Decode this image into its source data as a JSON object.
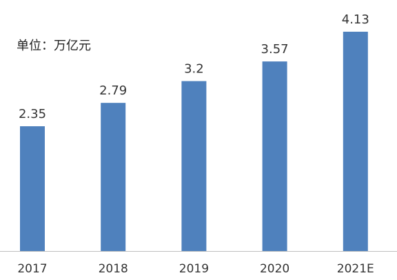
{
  "chart_data": {
    "type": "bar",
    "unit_label": "单位：万亿元",
    "categories": [
      "2017",
      "2018",
      "2019",
      "2020",
      "2021E"
    ],
    "values": [
      2.35,
      2.79,
      3.2,
      3.57,
      4.13
    ],
    "value_labels": [
      "2.35",
      "2.79",
      "3.2",
      "3.57",
      "4.13"
    ],
    "ylim": [
      0,
      4.5
    ],
    "bar_color": "#4f81bd",
    "axis_color": "#bfbfbf",
    "grid": false
  }
}
